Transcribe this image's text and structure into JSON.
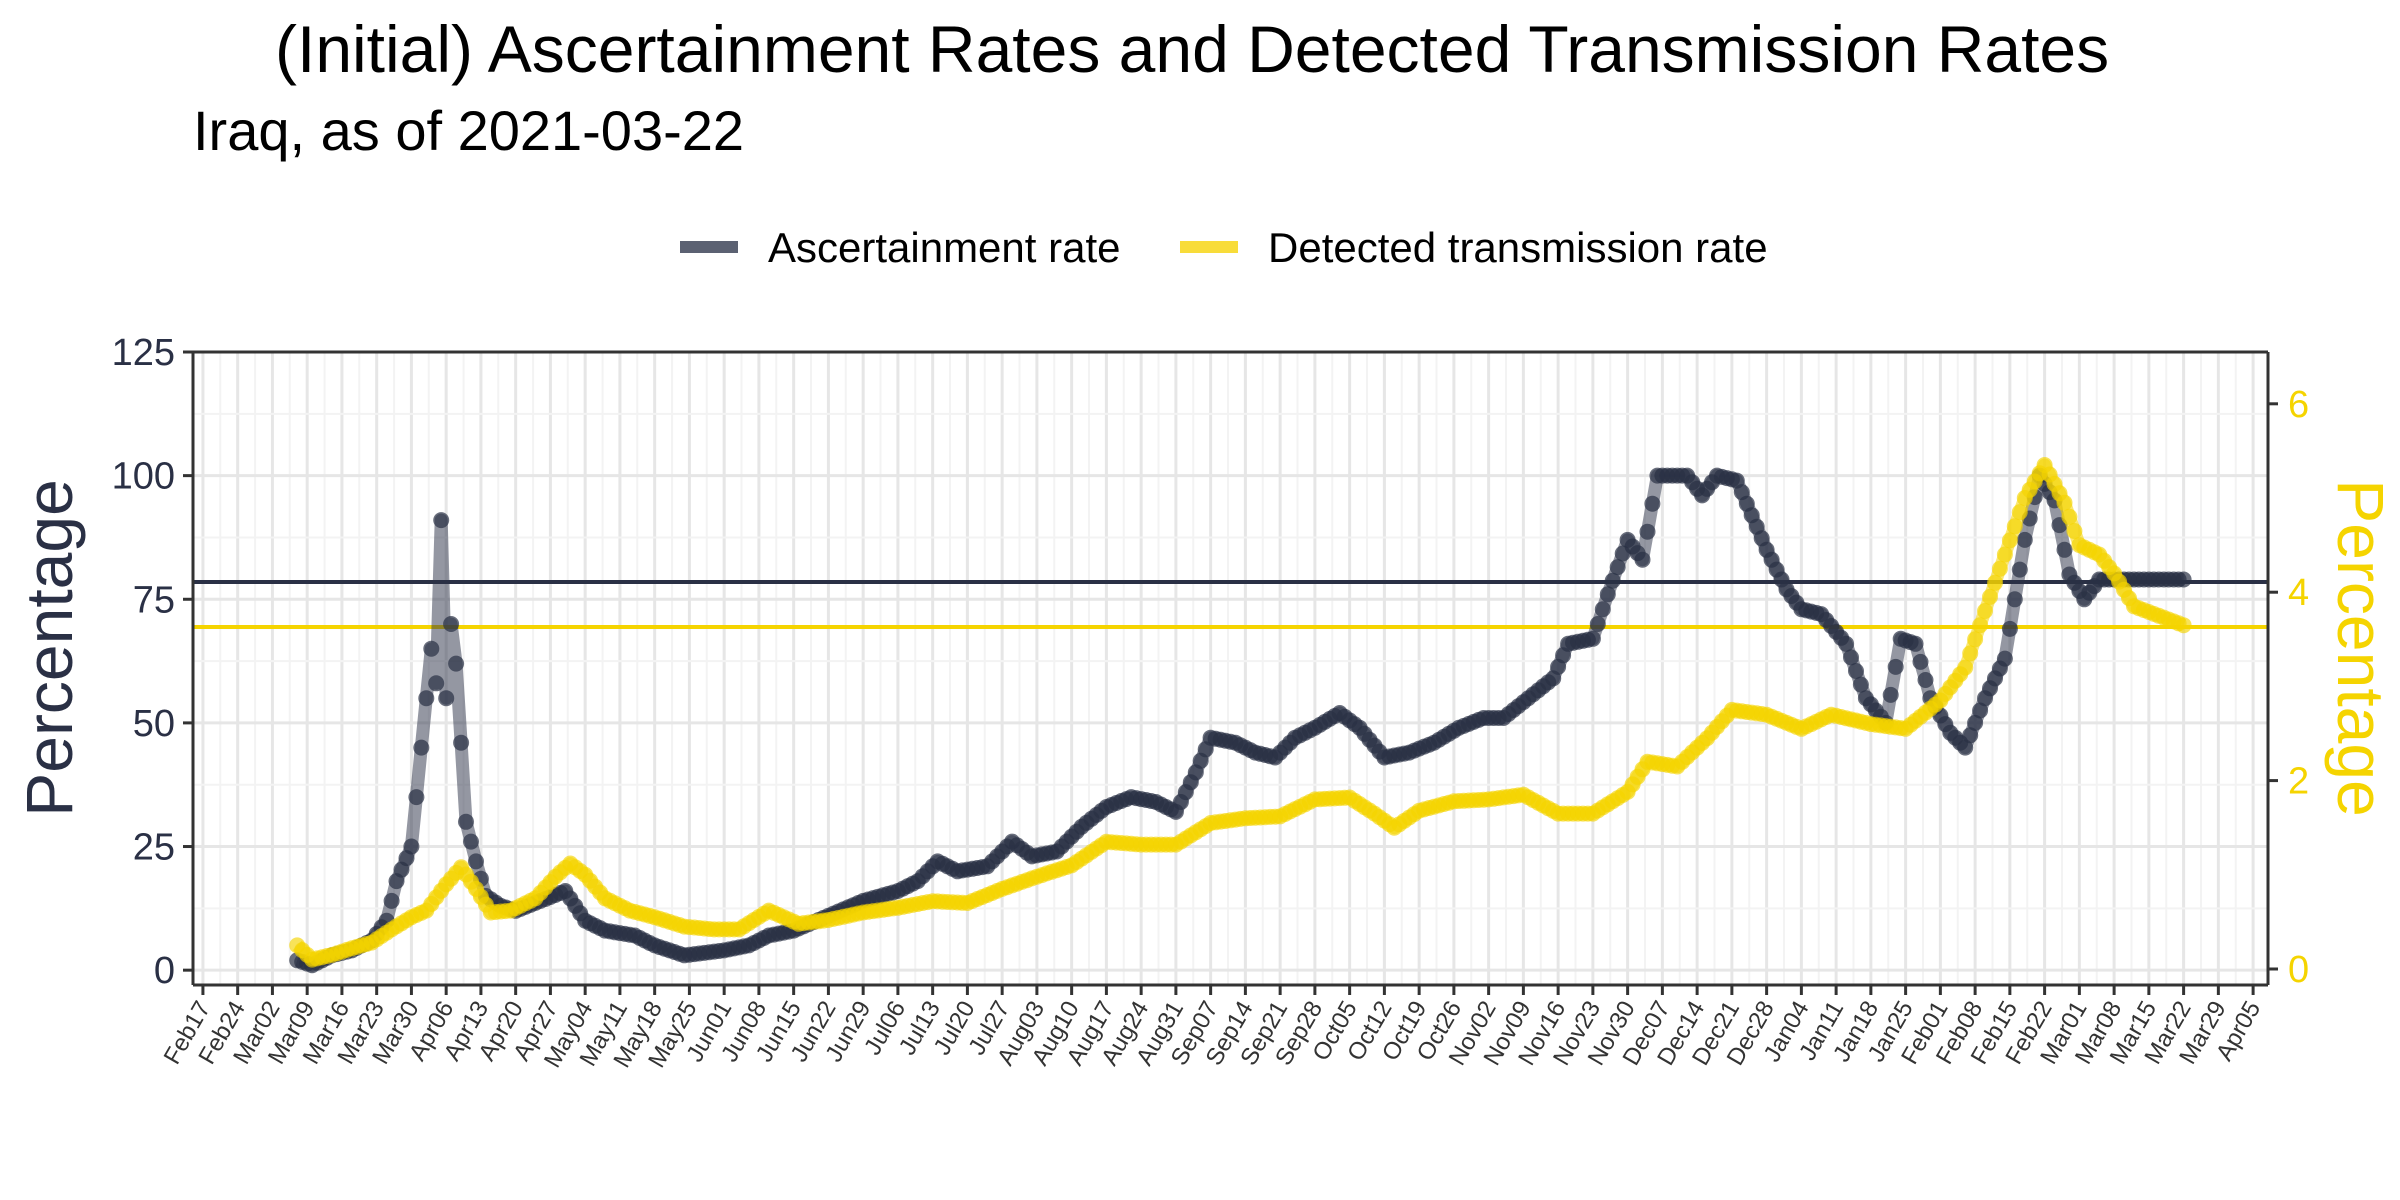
{
  "chart_data": {
    "type": "line",
    "title": "(Initial) Ascertainment Rates and Detected Transmission Rates",
    "subtitle": "Iraq, as of 2021-03-22",
    "ylabel_left": "Percentage",
    "ylabel_right": "Percentage",
    "ylim_left": [
      -3,
      125
    ],
    "ylim_right": [
      -0.17,
      6.55
    ],
    "yticks_left": [
      0,
      25,
      50,
      75,
      100,
      125
    ],
    "yticks_right": [
      0,
      2,
      4,
      6
    ],
    "xlim": [
      "2020-02-15",
      "2021-04-08"
    ],
    "x_ticks": [
      "Feb17",
      "Feb24",
      "Mar02",
      "Mar09",
      "Mar16",
      "Mar23",
      "Mar30",
      "Apr06",
      "Apr13",
      "Apr20",
      "Apr27",
      "May04",
      "May11",
      "May18",
      "May25",
      "Jun01",
      "Jun08",
      "Jun15",
      "Jun22",
      "Jun29",
      "Jul06",
      "Jul13",
      "Jul20",
      "Jul27",
      "Aug03",
      "Aug10",
      "Aug17",
      "Aug24",
      "Aug31",
      "Sep07",
      "Sep14",
      "Sep21",
      "Sep28",
      "Oct05",
      "Oct12",
      "Oct19",
      "Oct26",
      "Nov02",
      "Nov09",
      "Nov16",
      "Nov23",
      "Nov30",
      "Dec07",
      "Dec14",
      "Dec21",
      "Dec28",
      "Jan04",
      "Jan11",
      "Jan18",
      "Jan25",
      "Feb01",
      "Feb08",
      "Feb15",
      "Feb22",
      "Mar01",
      "Mar08",
      "Mar15",
      "Mar22",
      "Mar29",
      "Apr05"
    ],
    "legend_position": "top",
    "grid": true,
    "colors": {
      "ascertainment": "#2a3045",
      "transmission": "#f5d400"
    },
    "series": [
      {
        "name": "Ascertainment rate",
        "axis": "left",
        "reference_line": 78.5,
        "points": [
          [
            "2020-03-07",
            2
          ],
          [
            "2020-03-10",
            1
          ],
          [
            "2020-03-14",
            3
          ],
          [
            "2020-03-18",
            4
          ],
          [
            "2020-03-22",
            6
          ],
          [
            "2020-03-25",
            10
          ],
          [
            "2020-03-27",
            18
          ],
          [
            "2020-03-30",
            25
          ],
          [
            "2020-04-01",
            45
          ],
          [
            "2020-04-03",
            65
          ],
          [
            "2020-04-04",
            58
          ],
          [
            "2020-04-05",
            91
          ],
          [
            "2020-04-06",
            55
          ],
          [
            "2020-04-07",
            70
          ],
          [
            "2020-04-08",
            62
          ],
          [
            "2020-04-10",
            30
          ],
          [
            "2020-04-12",
            22
          ],
          [
            "2020-04-14",
            15
          ],
          [
            "2020-04-17",
            13
          ],
          [
            "2020-04-20",
            12
          ],
          [
            "2020-04-25",
            14
          ],
          [
            "2020-04-30",
            16
          ],
          [
            "2020-05-04",
            10
          ],
          [
            "2020-05-08",
            8
          ],
          [
            "2020-05-14",
            7
          ],
          [
            "2020-05-18",
            5
          ],
          [
            "2020-05-24",
            3
          ],
          [
            "2020-06-01",
            4
          ],
          [
            "2020-06-06",
            5
          ],
          [
            "2020-06-10",
            7
          ],
          [
            "2020-06-15",
            8
          ],
          [
            "2020-06-22",
            11
          ],
          [
            "2020-06-29",
            14
          ],
          [
            "2020-07-06",
            16
          ],
          [
            "2020-07-10",
            18
          ],
          [
            "2020-07-14",
            22
          ],
          [
            "2020-07-18",
            20
          ],
          [
            "2020-07-24",
            21
          ],
          [
            "2020-07-29",
            26
          ],
          [
            "2020-08-02",
            23
          ],
          [
            "2020-08-07",
            24
          ],
          [
            "2020-08-12",
            29
          ],
          [
            "2020-08-17",
            33
          ],
          [
            "2020-08-22",
            35
          ],
          [
            "2020-08-27",
            34
          ],
          [
            "2020-08-31",
            32
          ],
          [
            "2020-09-04",
            40
          ],
          [
            "2020-09-07",
            47
          ],
          [
            "2020-09-12",
            46
          ],
          [
            "2020-09-16",
            44
          ],
          [
            "2020-09-20",
            43
          ],
          [
            "2020-09-24",
            47
          ],
          [
            "2020-09-28",
            49
          ],
          [
            "2020-10-03",
            52
          ],
          [
            "2020-10-07",
            49
          ],
          [
            "2020-10-12",
            43
          ],
          [
            "2020-10-17",
            44
          ],
          [
            "2020-10-22",
            46
          ],
          [
            "2020-10-27",
            49
          ],
          [
            "2020-11-01",
            51
          ],
          [
            "2020-11-05",
            51
          ],
          [
            "2020-11-10",
            55
          ],
          [
            "2020-11-15",
            59
          ],
          [
            "2020-11-18",
            66
          ],
          [
            "2020-11-23",
            67
          ],
          [
            "2020-11-26",
            76
          ],
          [
            "2020-11-30",
            87
          ],
          [
            "2020-12-03",
            83
          ],
          [
            "2020-12-06",
            100
          ],
          [
            "2020-12-12",
            100
          ],
          [
            "2020-12-15",
            96
          ],
          [
            "2020-12-18",
            100
          ],
          [
            "2020-12-22",
            99
          ],
          [
            "2020-12-25",
            92
          ],
          [
            "2020-12-28",
            85
          ],
          [
            "2021-01-01",
            77
          ],
          [
            "2021-01-04",
            73
          ],
          [
            "2021-01-08",
            72
          ],
          [
            "2021-01-13",
            66
          ],
          [
            "2021-01-17",
            55
          ],
          [
            "2021-01-21",
            50
          ],
          [
            "2021-01-24",
            67
          ],
          [
            "2021-01-27",
            66
          ],
          [
            "2021-01-30",
            55
          ],
          [
            "2021-02-03",
            48
          ],
          [
            "2021-02-06",
            45
          ],
          [
            "2021-02-10",
            55
          ],
          [
            "2021-02-14",
            63
          ],
          [
            "2021-02-18",
            87
          ],
          [
            "2021-02-21",
            100
          ],
          [
            "2021-02-24",
            95
          ],
          [
            "2021-02-27",
            80
          ],
          [
            "2021-03-02",
            75
          ],
          [
            "2021-03-05",
            79
          ],
          [
            "2021-03-10",
            79
          ],
          [
            "2021-03-15",
            79
          ],
          [
            "2021-03-22",
            79
          ]
        ]
      },
      {
        "name": "Detected transmission rate",
        "axis": "right",
        "reference_line": 3.63,
        "points": [
          [
            "2020-03-07",
            0.25
          ],
          [
            "2020-03-10",
            0.1
          ],
          [
            "2020-03-14",
            0.15
          ],
          [
            "2020-03-18",
            0.22
          ],
          [
            "2020-03-22",
            0.28
          ],
          [
            "2020-03-26",
            0.42
          ],
          [
            "2020-03-30",
            0.55
          ],
          [
            "2020-04-02",
            0.62
          ],
          [
            "2020-04-06",
            0.9
          ],
          [
            "2020-04-09",
            1.08
          ],
          [
            "2020-04-12",
            0.85
          ],
          [
            "2020-04-15",
            0.6
          ],
          [
            "2020-04-19",
            0.62
          ],
          [
            "2020-04-24",
            0.75
          ],
          [
            "2020-04-28",
            0.98
          ],
          [
            "2020-05-01",
            1.12
          ],
          [
            "2020-05-04",
            1.0
          ],
          [
            "2020-05-08",
            0.75
          ],
          [
            "2020-05-13",
            0.62
          ],
          [
            "2020-05-18",
            0.55
          ],
          [
            "2020-05-24",
            0.45
          ],
          [
            "2020-05-30",
            0.42
          ],
          [
            "2020-06-04",
            0.42
          ],
          [
            "2020-06-10",
            0.62
          ],
          [
            "2020-06-16",
            0.48
          ],
          [
            "2020-06-22",
            0.52
          ],
          [
            "2020-06-29",
            0.6
          ],
          [
            "2020-07-06",
            0.65
          ],
          [
            "2020-07-13",
            0.72
          ],
          [
            "2020-07-20",
            0.7
          ],
          [
            "2020-07-27",
            0.85
          ],
          [
            "2020-08-03",
            0.98
          ],
          [
            "2020-08-10",
            1.1
          ],
          [
            "2020-08-17",
            1.35
          ],
          [
            "2020-08-24",
            1.32
          ],
          [
            "2020-08-31",
            1.32
          ],
          [
            "2020-09-07",
            1.55
          ],
          [
            "2020-09-14",
            1.6
          ],
          [
            "2020-09-21",
            1.62
          ],
          [
            "2020-09-28",
            1.8
          ],
          [
            "2020-10-05",
            1.82
          ],
          [
            "2020-10-10",
            1.65
          ],
          [
            "2020-10-14",
            1.5
          ],
          [
            "2020-10-19",
            1.68
          ],
          [
            "2020-10-26",
            1.78
          ],
          [
            "2020-11-02",
            1.8
          ],
          [
            "2020-11-09",
            1.85
          ],
          [
            "2020-11-16",
            1.65
          ],
          [
            "2020-11-23",
            1.65
          ],
          [
            "2020-11-30",
            1.88
          ],
          [
            "2020-12-04",
            2.2
          ],
          [
            "2020-12-10",
            2.15
          ],
          [
            "2020-12-16",
            2.45
          ],
          [
            "2020-12-21",
            2.75
          ],
          [
            "2020-12-28",
            2.7
          ],
          [
            "2021-01-04",
            2.55
          ],
          [
            "2021-01-10",
            2.7
          ],
          [
            "2021-01-18",
            2.6
          ],
          [
            "2021-01-25",
            2.55
          ],
          [
            "2021-02-01",
            2.85
          ],
          [
            "2021-02-06",
            3.2
          ],
          [
            "2021-02-10",
            3.8
          ],
          [
            "2021-02-14",
            4.4
          ],
          [
            "2021-02-18",
            5.0
          ],
          [
            "2021-02-22",
            5.35
          ],
          [
            "2021-02-26",
            4.95
          ],
          [
            "2021-03-01",
            4.5
          ],
          [
            "2021-03-05",
            4.4
          ],
          [
            "2021-03-08",
            4.2
          ],
          [
            "2021-03-12",
            3.85
          ],
          [
            "2021-03-17",
            3.75
          ],
          [
            "2021-03-22",
            3.65
          ]
        ]
      }
    ]
  }
}
